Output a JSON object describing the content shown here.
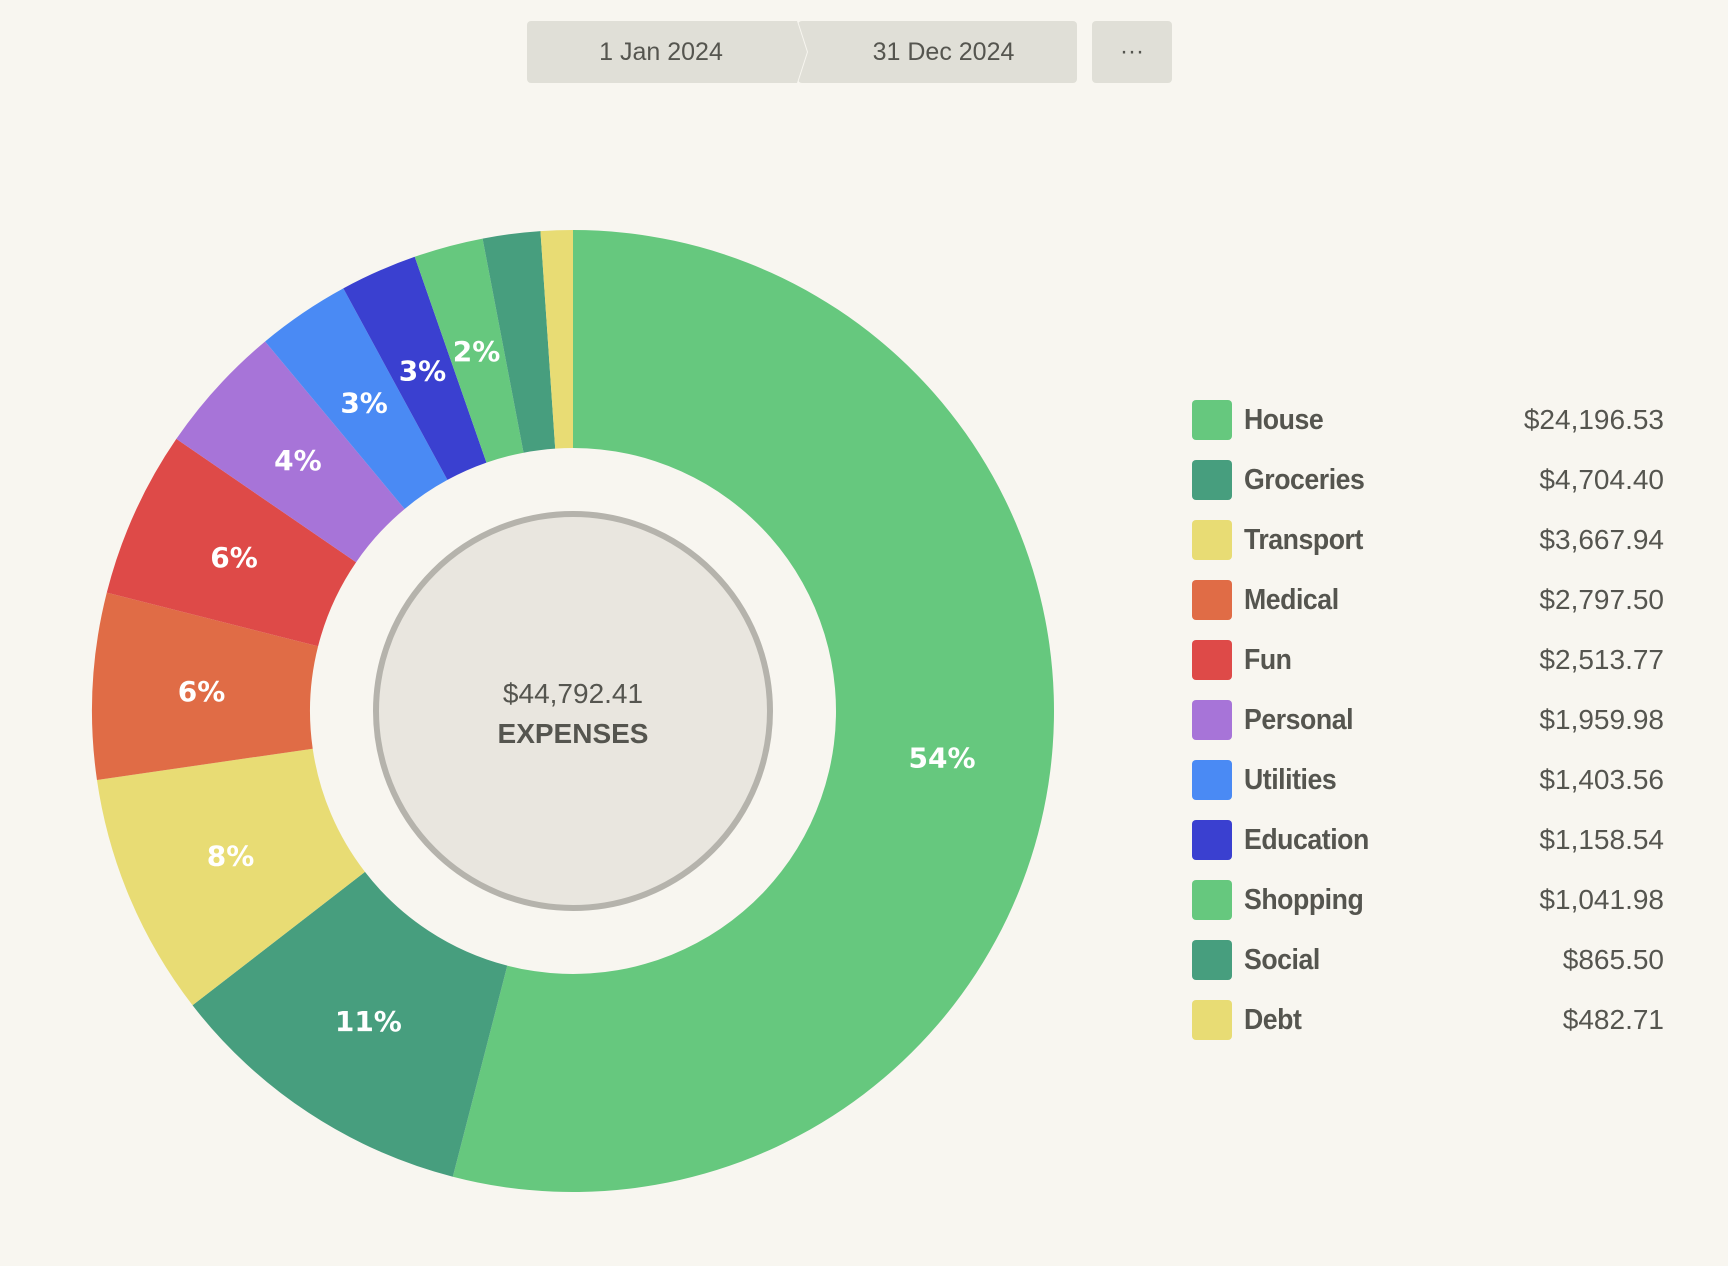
{
  "date_range": {
    "start": "1 Jan 2024",
    "end": "31 Dec 2024",
    "more_label": "···"
  },
  "center": {
    "total": "$44,792.41",
    "caption": "EXPENSES"
  },
  "chart_data": {
    "type": "pie",
    "donut": true,
    "legend_position": "right",
    "total": 44792.41,
    "categories": [
      "House",
      "Groceries",
      "Transport",
      "Medical",
      "Fun",
      "Personal",
      "Utilities",
      "Education",
      "Shopping",
      "Social",
      "Debt"
    ],
    "values": [
      24196.53,
      4704.4,
      3667.94,
      2797.5,
      2513.77,
      1959.98,
      1403.56,
      1158.54,
      1041.98,
      865.5,
      482.71
    ],
    "value_labels": [
      "$24,196.53",
      "$4,704.40",
      "$3,667.94",
      "$2,797.50",
      "$2,513.77",
      "$1,959.98",
      "$1,403.56",
      "$1,158.54",
      "$1,041.98",
      "$865.50",
      "$482.71"
    ],
    "percent_labels": [
      "54%",
      "11%",
      "8%",
      "6%",
      "6%",
      "4%",
      "3%",
      "3%",
      "2%",
      "",
      ""
    ],
    "colors": [
      "#66c87e",
      "#479e7e",
      "#e8dc74",
      "#e06c46",
      "#de4a48",
      "#a774d8",
      "#4a8af4",
      "#3a40d0",
      "#66c87e",
      "#479e7e",
      "#e8dc74"
    ]
  }
}
